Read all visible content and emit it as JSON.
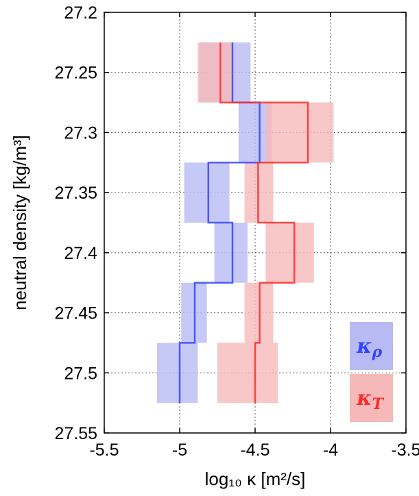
{
  "chart_data": {
    "type": "step",
    "xlabel": "log₁₀ κ [m²/s]",
    "ylabel": "neutral density [kg/m³]",
    "xlim": [
      -5.5,
      -3.5
    ],
    "ylim": [
      27.55,
      27.2
    ],
    "y_inverted": true,
    "x_ticks": [
      "-5.5",
      "-5",
      "-4.5",
      "-4",
      "-3.5"
    ],
    "y_ticks": [
      "27.2",
      "27.25",
      "27.3",
      "27.35",
      "27.4",
      "27.45",
      "27.5",
      "27.55"
    ],
    "grid": "dotted",
    "legend_position": "bottom-right",
    "colors": {
      "kappa_rho_line": "#3344ff",
      "kappa_rho_band": "#b8baf4",
      "kappa_T_line": "#ff2a2a",
      "kappa_T_band": "#f6b9b9"
    },
    "series": [
      {
        "name": "κρ",
        "key": "kappa_rho",
        "bins": [
          {
            "y_top": 27.225,
            "y_bottom": 27.275,
            "value": -4.65,
            "low": -4.87,
            "high": -4.53
          },
          {
            "y_top": 27.275,
            "y_bottom": 27.325,
            "value": -4.47,
            "low": -4.61,
            "high": -4.39
          },
          {
            "y_top": 27.325,
            "y_bottom": 27.375,
            "value": -4.81,
            "low": -4.97,
            "high": -4.67
          },
          {
            "y_top": 27.375,
            "y_bottom": 27.425,
            "value": -4.65,
            "low": -4.77,
            "high": -4.55
          },
          {
            "y_top": 27.425,
            "y_bottom": 27.475,
            "value": -4.9,
            "low": -4.99,
            "high": -4.82
          },
          {
            "y_top": 27.475,
            "y_bottom": 27.525,
            "value": -5.0,
            "low": -5.15,
            "high": -4.88
          }
        ]
      },
      {
        "name": "κT",
        "key": "kappa_T",
        "bins": [
          {
            "y_top": 27.225,
            "y_bottom": 27.275,
            "value": -4.73,
            "low": -4.88,
            "high": -4.65
          },
          {
            "y_top": 27.275,
            "y_bottom": 27.325,
            "value": -4.15,
            "low": -4.43,
            "high": -3.98
          },
          {
            "y_top": 27.325,
            "y_bottom": 27.375,
            "value": -4.48,
            "low": -4.57,
            "high": -4.38
          },
          {
            "y_top": 27.375,
            "y_bottom": 27.425,
            "value": -4.24,
            "low": -4.43,
            "high": -4.11
          },
          {
            "y_top": 27.425,
            "y_bottom": 27.475,
            "value": -4.47,
            "low": -4.57,
            "high": -4.38
          },
          {
            "y_top": 27.475,
            "y_bottom": 27.525,
            "value": -4.5,
            "low": -4.75,
            "high": -4.35
          }
        ]
      }
    ],
    "legend": [
      {
        "symbol": "κ",
        "sub": "ρ",
        "series": "kappa_rho"
      },
      {
        "symbol": "κ",
        "sub": "T",
        "series": "kappa_T"
      }
    ]
  }
}
